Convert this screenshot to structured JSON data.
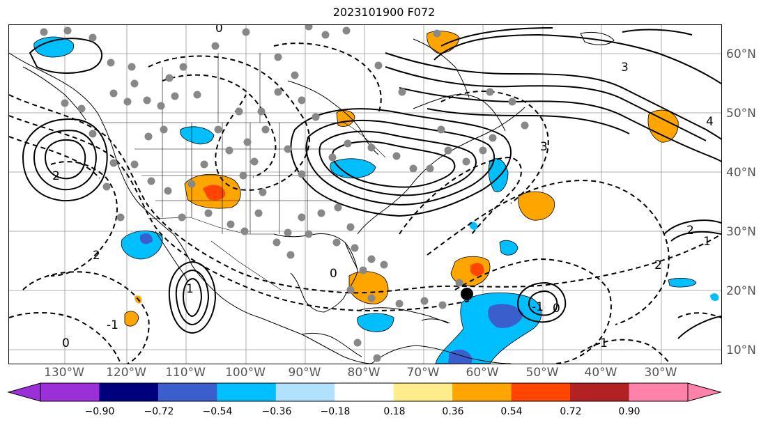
{
  "title": "2023101900 F072",
  "map": {
    "lat_labels": [
      "60°N",
      "50°N",
      "40°N",
      "30°N",
      "20°N",
      "10°N"
    ],
    "lon_labels": [
      "130°W",
      "120°W",
      "110°W",
      "100°W",
      "90°W",
      "80°W",
      "70°W",
      "60°W",
      "50°W",
      "40°W",
      "30°W"
    ],
    "contour_labels": [
      "2",
      "1",
      "0",
      "-1",
      "4",
      "3",
      "2",
      "3",
      "-1",
      "2",
      "0",
      "1",
      "2",
      "0",
      "-1",
      "0"
    ]
  },
  "colorbar": {
    "ticks": [
      "−0.90",
      "−0.72",
      "−0.54",
      "−0.36",
      "−0.18",
      "0.18",
      "0.36",
      "0.54",
      "0.72",
      "0.90"
    ],
    "colors": [
      "#9b30d8",
      "#00007f",
      "#3a5fcd",
      "#00bfff",
      "#b0e2ff",
      "#ffffff",
      "#ffec8b",
      "#ffa500",
      "#ff4500",
      "#b22222",
      "#ff82ab",
      "#ff82ab"
    ]
  }
}
